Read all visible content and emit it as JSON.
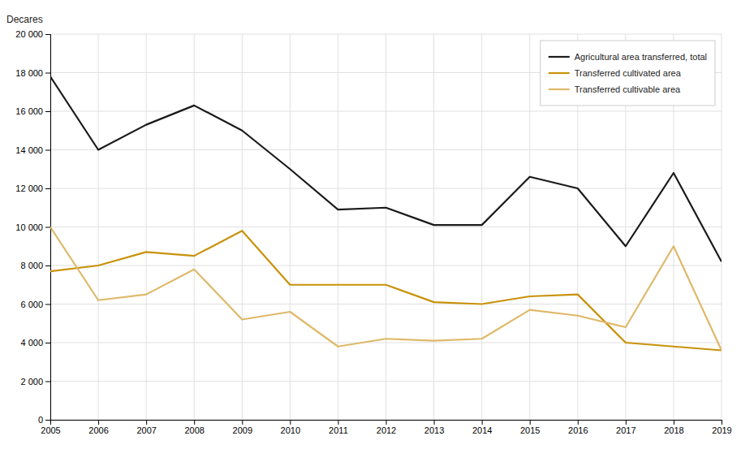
{
  "chart_data": {
    "type": "line",
    "y_label": "Decares",
    "x": [
      2005,
      2006,
      2007,
      2008,
      2009,
      2010,
      2011,
      2012,
      2013,
      2014,
      2015,
      2016,
      2017,
      2018,
      2019
    ],
    "series": [
      {
        "name": "Agricultural area transferred, total",
        "color": "#1a1a1a",
        "values": [
          17800,
          14000,
          15300,
          16300,
          15000,
          13000,
          10900,
          11000,
          10100,
          10100,
          12600,
          12000,
          9000,
          12800,
          8200
        ]
      },
      {
        "name": "Transferred cultivated area",
        "color": "#c8920a",
        "values": [
          7700,
          8000,
          8700,
          8500,
          9800,
          7000,
          7000,
          7000,
          6100,
          6000,
          6400,
          6500,
          4000,
          3800,
          3600
        ]
      },
      {
        "name": "Transferred cultivable area",
        "color": "#deb96a",
        "values": [
          10000,
          6200,
          6500,
          7800,
          5200,
          5600,
          3800,
          4200,
          4100,
          4200,
          5700,
          5400,
          4800,
          9000,
          3600
        ]
      }
    ],
    "xlim": [
      2005,
      2019
    ],
    "xticks": [
      2005,
      2006,
      2007,
      2008,
      2009,
      2010,
      2011,
      2012,
      2013,
      2014,
      2015,
      2016,
      2017,
      2018,
      2019
    ],
    "ylim": [
      0,
      20000
    ],
    "yticks": [
      0,
      {
        "value": 2000,
        "label": "2 000"
      },
      {
        "value": 4000,
        "label": "4 000"
      },
      {
        "value": 6000,
        "label": "6 000"
      },
      {
        "value": 8000,
        "label": "8 000"
      },
      {
        "value": 10000,
        "label": "10 000"
      },
      {
        "value": 12000,
        "label": "12 000"
      },
      {
        "value": 14000,
        "label": "14 000"
      },
      {
        "value": 16000,
        "label": "16 000"
      },
      {
        "value": 18000,
        "label": "18 000"
      },
      {
        "value": 20000,
        "label": "20 000"
      }
    ],
    "grid": true,
    "legend": "upper right"
  }
}
